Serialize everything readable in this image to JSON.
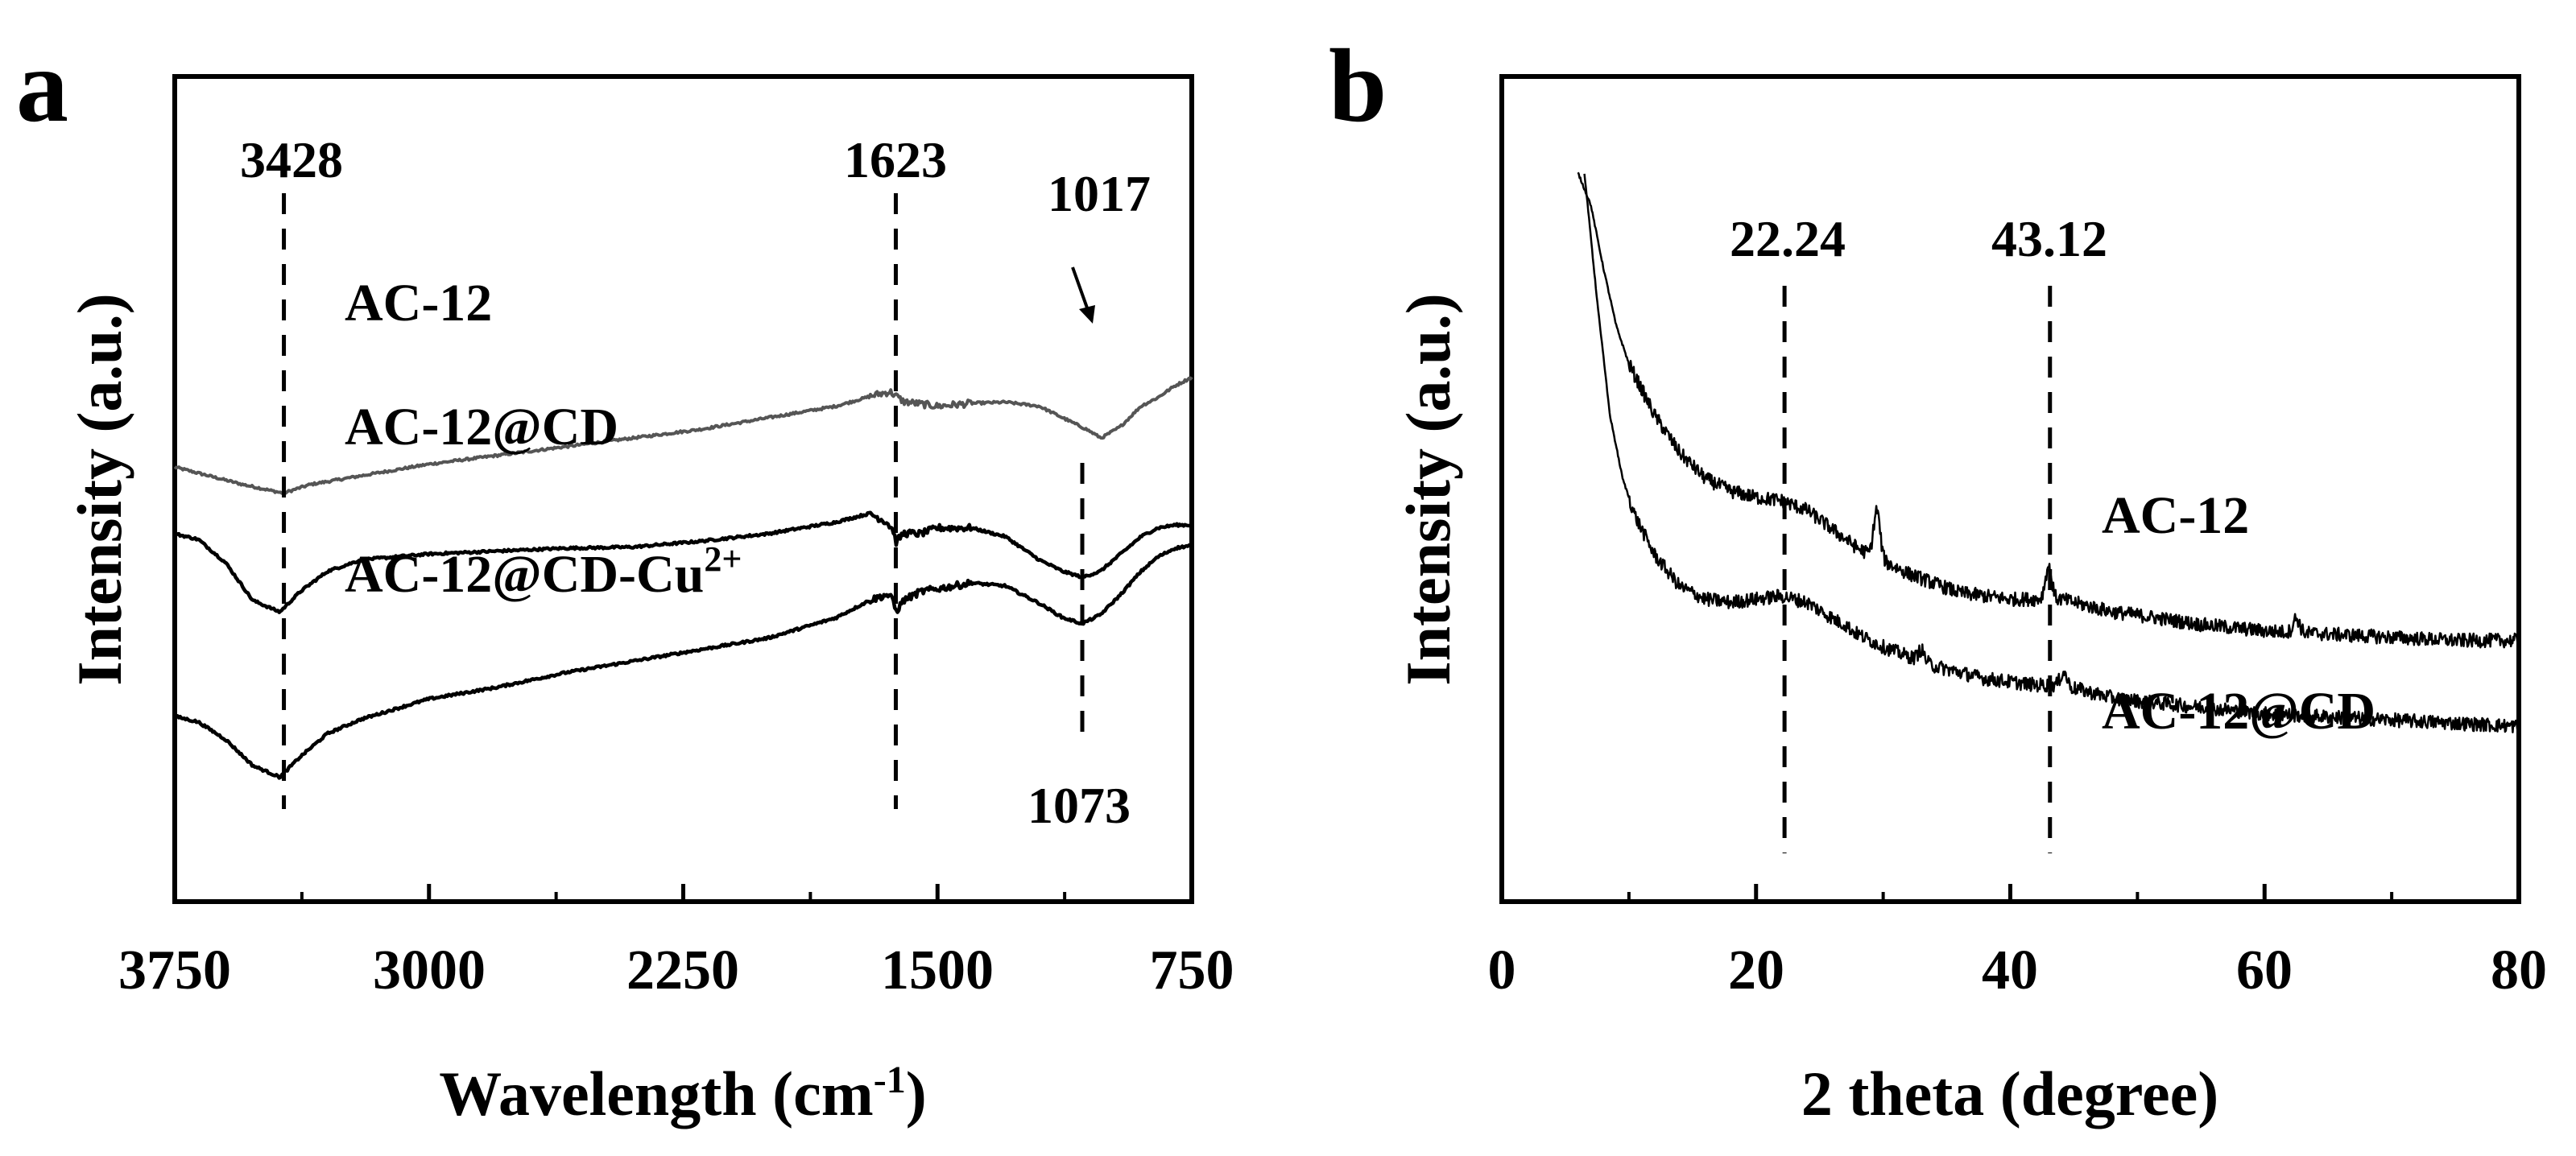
{
  "chart_data": [
    {
      "panel_label": "a",
      "type": "line",
      "xlabel": "Wavelength (cm",
      "xlabel_sup": "-1",
      "xlabel_close": ")",
      "ylabel": "Intensity (a.u.)",
      "xlim": [
        3750,
        750
      ],
      "x_reversed": true,
      "xticks": [
        3750,
        3000,
        2250,
        1500,
        750
      ],
      "xtick_labels": [
        "3750",
        "3000",
        "2250",
        "1500",
        "750"
      ],
      "series": [
        {
          "name": "AC-12",
          "label": "AC-12",
          "color": "#555555",
          "points": [
            [
              3750,
              0.59
            ],
            [
              3650,
              0.575
            ],
            [
              3550,
              0.56
            ],
            [
              3430,
              0.545
            ],
            [
              3350,
              0.56
            ],
            [
              3200,
              0.575
            ],
            [
              3000,
              0.595
            ],
            [
              2800,
              0.61
            ],
            [
              2600,
              0.625
            ],
            [
              2400,
              0.64
            ],
            [
              2200,
              0.655
            ],
            [
              2000,
              0.675
            ],
            [
              1800,
              0.695
            ],
            [
              1680,
              0.715
            ],
            [
              1640,
              0.72
            ],
            [
              1623,
              0.713
            ],
            [
              1600,
              0.703
            ],
            [
              1500,
              0.695
            ],
            [
              1400,
              0.7
            ],
            [
              1300,
              0.702
            ],
            [
              1200,
              0.695
            ],
            [
              1120,
              0.672
            ],
            [
              1060,
              0.655
            ],
            [
              1017,
              0.64
            ],
            [
              960,
              0.66
            ],
            [
              900,
              0.695
            ],
            [
              850,
              0.71
            ],
            [
              800,
              0.73
            ],
            [
              750,
              0.745
            ]
          ]
        },
        {
          "name": "AC-12@CD",
          "label": "AC-12@CD",
          "color": "#000000",
          "points": [
            [
              3750,
              0.475
            ],
            [
              3680,
              0.465
            ],
            [
              3600,
              0.425
            ],
            [
              3520,
              0.36
            ],
            [
              3440,
              0.34
            ],
            [
              3380,
              0.375
            ],
            [
              3300,
              0.41
            ],
            [
              3200,
              0.43
            ],
            [
              3000,
              0.44
            ],
            [
              2800,
              0.445
            ],
            [
              2600,
              0.45
            ],
            [
              2400,
              0.452
            ],
            [
              2200,
              0.462
            ],
            [
              2000,
              0.475
            ],
            [
              1800,
              0.495
            ],
            [
              1700,
              0.51
            ],
            [
              1650,
              0.495
            ],
            [
              1630,
              0.48
            ],
            [
              1623,
              0.46
            ],
            [
              1600,
              0.476
            ],
            [
              1550,
              0.475
            ],
            [
              1500,
              0.485
            ],
            [
              1400,
              0.485
            ],
            [
              1300,
              0.47
            ],
            [
              1200,
              0.43
            ],
            [
              1130,
              0.41
            ],
            [
              1073,
              0.4
            ],
            [
              1020,
              0.41
            ],
            [
              960,
              0.44
            ],
            [
              900,
              0.47
            ],
            [
              850,
              0.485
            ],
            [
              800,
              0.49
            ],
            [
              750,
              0.49
            ]
          ]
        },
        {
          "name": "AC-12@CD-Cu2+",
          "label": "AC-12@CD-Cu",
          "label_sup": "2+",
          "color": "#000000",
          "points": [
            [
              3750,
              0.16
            ],
            [
              3680,
              0.15
            ],
            [
              3600,
              0.12
            ],
            [
              3520,
              0.075
            ],
            [
              3440,
              0.055
            ],
            [
              3380,
              0.09
            ],
            [
              3300,
              0.13
            ],
            [
              3200,
              0.155
            ],
            [
              3000,
              0.19
            ],
            [
              2800,
              0.21
            ],
            [
              2600,
              0.235
            ],
            [
              2400,
              0.255
            ],
            [
              2200,
              0.275
            ],
            [
              2000,
              0.295
            ],
            [
              1800,
              0.33
            ],
            [
              1700,
              0.36
            ],
            [
              1650,
              0.37
            ],
            [
              1630,
              0.36
            ],
            [
              1623,
              0.34
            ],
            [
              1600,
              0.36
            ],
            [
              1550,
              0.375
            ],
            [
              1500,
              0.38
            ],
            [
              1400,
              0.39
            ],
            [
              1300,
              0.385
            ],
            [
              1200,
              0.355
            ],
            [
              1130,
              0.33
            ],
            [
              1073,
              0.32
            ],
            [
              1020,
              0.335
            ],
            [
              960,
              0.37
            ],
            [
              900,
              0.41
            ],
            [
              850,
              0.435
            ],
            [
              800,
              0.45
            ],
            [
              750,
              0.455
            ]
          ]
        }
      ],
      "annotations": [
        {
          "text": "3428",
          "x": 3428
        },
        {
          "text": "1623",
          "x": 1623
        },
        {
          "text": "1017",
          "x": 1017
        },
        {
          "text": "1073",
          "x": 1073
        }
      ]
    },
    {
      "panel_label": "b",
      "type": "line",
      "xlabel": "2 theta (degree)",
      "ylabel": "Intensity (a.u.)",
      "xlim": [
        0,
        80
      ],
      "xticks": [
        0,
        20,
        40,
        60,
        80
      ],
      "xtick_labels": [
        "0",
        "20",
        "40",
        "60",
        "80"
      ],
      "series": [
        {
          "name": "AC-12",
          "label": "AC-12",
          "color": "#000000",
          "points": [
            [
              6,
              1.0
            ],
            [
              7,
              0.95
            ],
            [
              8,
              0.85
            ],
            [
              9,
              0.76
            ],
            [
              10,
              0.7
            ],
            [
              12,
              0.62
            ],
            [
              14,
              0.56
            ],
            [
              16,
              0.52
            ],
            [
              18,
              0.5
            ],
            [
              20,
              0.49
            ],
            [
              22,
              0.485
            ],
            [
              24,
              0.47
            ],
            [
              26,
              0.44
            ],
            [
              28,
              0.41
            ],
            [
              30,
              0.39
            ],
            [
              32,
              0.37
            ],
            [
              34,
              0.355
            ],
            [
              36,
              0.34
            ],
            [
              38,
              0.335
            ],
            [
              40,
              0.33
            ],
            [
              42,
              0.33
            ],
            [
              44,
              0.33
            ],
            [
              46,
              0.32
            ],
            [
              48,
              0.31
            ],
            [
              50,
              0.305
            ],
            [
              55,
              0.29
            ],
            [
              60,
              0.28
            ],
            [
              65,
              0.275
            ],
            [
              70,
              0.27
            ],
            [
              75,
              0.265
            ],
            [
              80,
              0.265
            ]
          ],
          "peaks": [
            [
              29.5,
              0.47
            ],
            [
              43,
              0.38
            ],
            [
              62.5,
              0.3
            ]
          ]
        },
        {
          "name": "AC-12@CD",
          "label": "AC-12@CD",
          "color": "#000000",
          "points": [
            [
              6.5,
              1.0
            ],
            [
              7.5,
              0.8
            ],
            [
              8.5,
              0.62
            ],
            [
              9.5,
              0.52
            ],
            [
              10.5,
              0.46
            ],
            [
              12,
              0.4
            ],
            [
              14,
              0.35
            ],
            [
              16,
              0.33
            ],
            [
              18,
              0.325
            ],
            [
              20,
              0.33
            ],
            [
              22,
              0.335
            ],
            [
              24,
              0.325
            ],
            [
              26,
              0.3
            ],
            [
              28,
              0.275
            ],
            [
              30,
              0.255
            ],
            [
              32,
              0.24
            ],
            [
              34,
              0.225
            ],
            [
              36,
              0.215
            ],
            [
              38,
              0.205
            ],
            [
              40,
              0.2
            ],
            [
              42,
              0.195
            ],
            [
              44,
              0.195
            ],
            [
              46,
              0.185
            ],
            [
              48,
              0.175
            ],
            [
              50,
              0.17
            ],
            [
              55,
              0.16
            ],
            [
              60,
              0.15
            ],
            [
              65,
              0.145
            ],
            [
              70,
              0.14
            ],
            [
              75,
              0.135
            ],
            [
              80,
              0.13
            ]
          ],
          "peaks": [
            [
              27,
              0.29
            ],
            [
              33,
              0.25
            ],
            [
              44.2,
              0.215
            ]
          ]
        }
      ],
      "annotations": [
        {
          "text": "22.24",
          "x": 22.24
        },
        {
          "text": "43.12",
          "x": 43.12
        }
      ]
    }
  ]
}
